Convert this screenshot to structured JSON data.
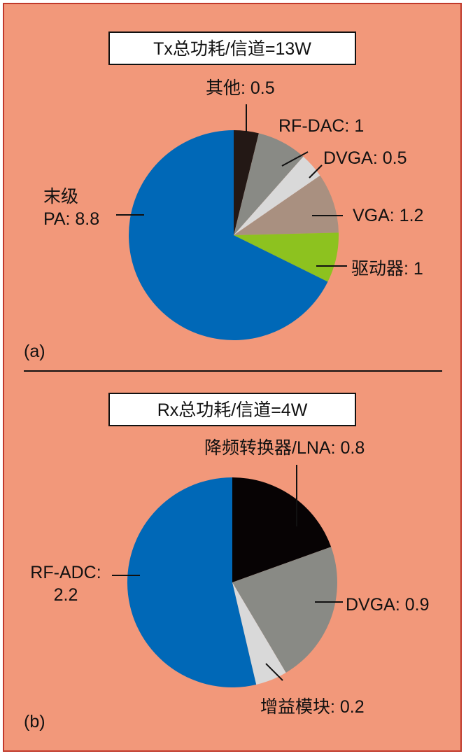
{
  "chart_data": [
    {
      "type": "pie",
      "panel_label": "(a)",
      "title": "Tx总功耗/信道=13W",
      "slices": [
        {
          "label": "其他: 0.5",
          "value": 0.5,
          "color": "#231815"
        },
        {
          "label": "RF-DAC: 1",
          "value": 1,
          "color": "#898a85"
        },
        {
          "label": "DVGA: 0.5",
          "value": 0.5,
          "color": "#d9d9d9"
        },
        {
          "label": "VGA: 1.2",
          "value": 1.2,
          "color": "#a99080"
        },
        {
          "label": "驱动器: 1",
          "value": 1,
          "color": "#8dc21f"
        },
        {
          "label_lines": [
            "末级",
            "PA: 8.8"
          ],
          "value": 8.8,
          "color": "#0068b7"
        }
      ]
    },
    {
      "type": "pie",
      "panel_label": "(b)",
      "title": "Rx总功耗/信道=4W",
      "slices": [
        {
          "label": "降频转换器/LNA: 0.8",
          "value": 0.8,
          "color": "#070304"
        },
        {
          "label": "DVGA: 0.9",
          "value": 0.9,
          "color": "#898a85"
        },
        {
          "label": "增益模块: 0.2",
          "value": 0.2,
          "color": "#d9d9d9"
        },
        {
          "label_lines": [
            "RF-ADC:",
            "2.2"
          ],
          "value": 2.2,
          "color": "#0068b7"
        }
      ]
    }
  ]
}
